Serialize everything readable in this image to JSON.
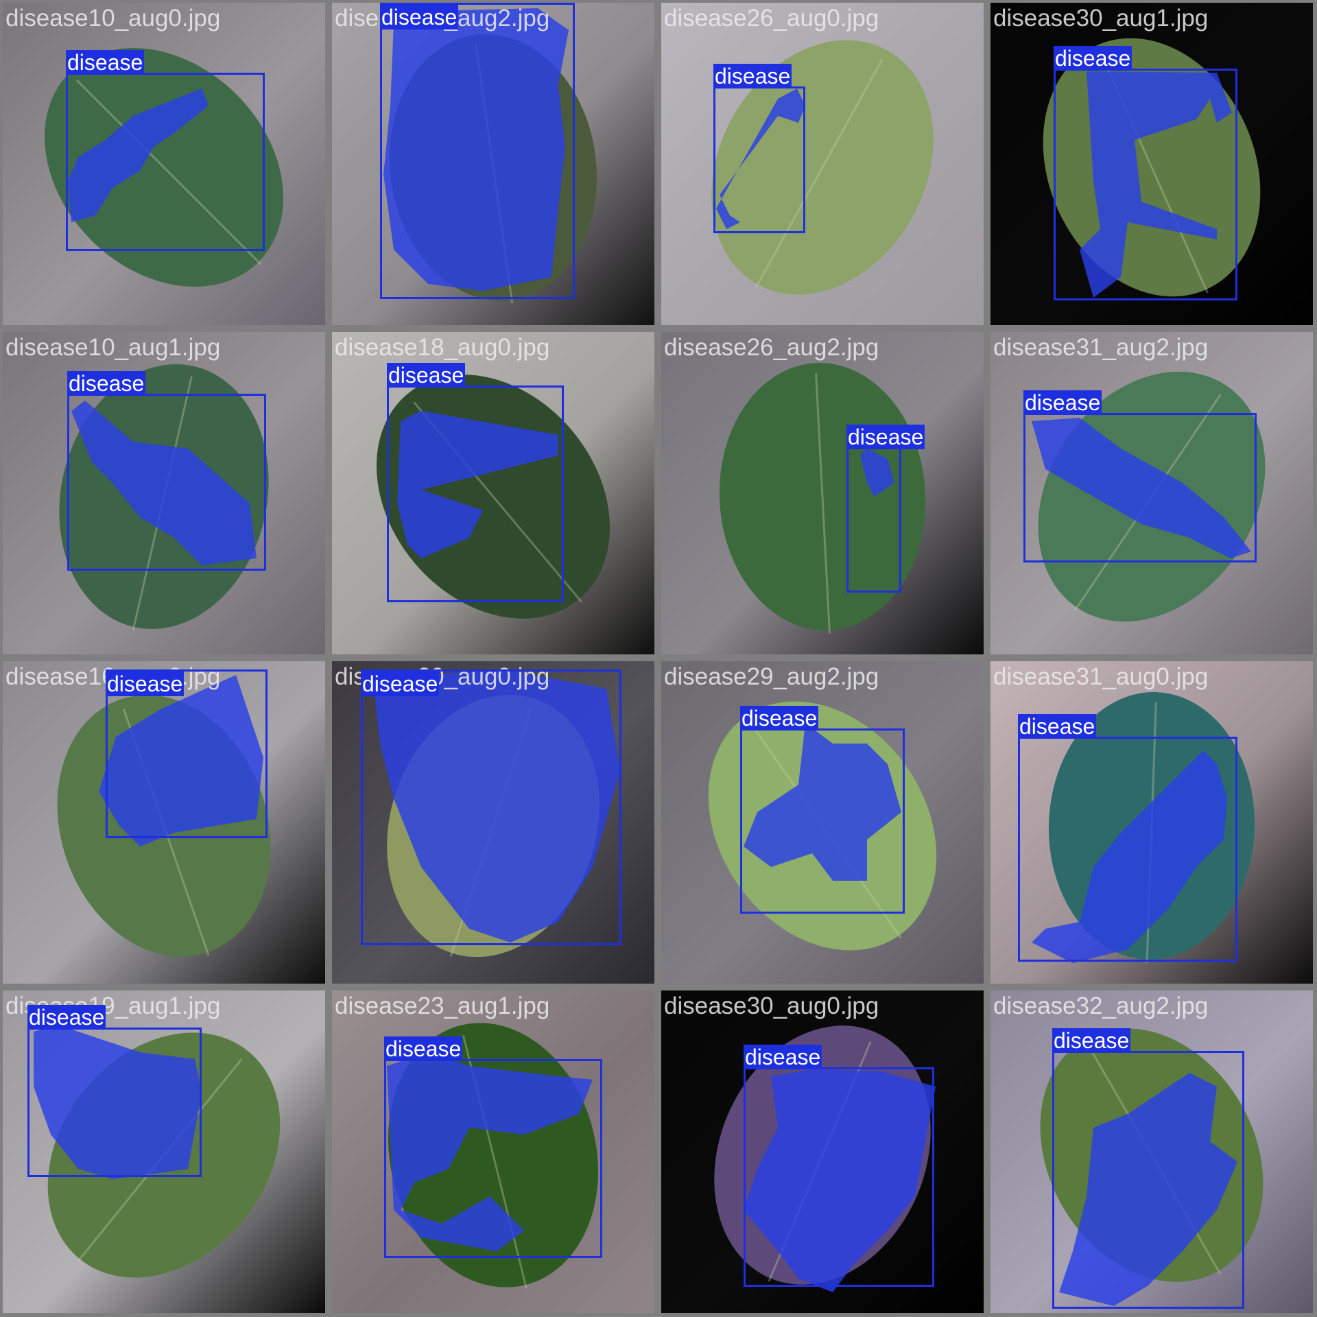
{
  "colors": {
    "border": "#7f7f7f",
    "detection": "#1e2fe0",
    "mask": "#2a3fe6",
    "label_text": "#ffffff"
  },
  "tiles": [
    {
      "filename": "disease10_aug0.jpg",
      "bg": [
        "#7a7579",
        "#9a969a",
        "#6a6670"
      ],
      "leaf": "#3f6a48",
      "det": {
        "label": "disease"
      }
    },
    {
      "filename": "disease17_aug2.jpg",
      "bg": [
        "#a6a3a8",
        "#8f8b8f",
        "#111111"
      ],
      "leaf": "#4a5a3a",
      "det": {
        "label": "disease"
      }
    },
    {
      "filename": "disease26_aug0.jpg",
      "bg": [
        "#b9b7bc",
        "#a9a6ab",
        "#9e9ba0"
      ],
      "leaf": "#8ea36a",
      "det": {
        "label": "disease"
      }
    },
    {
      "filename": "disease30_aug1.jpg",
      "bg": [
        "#050505",
        "#0a0a0a",
        "#000000"
      ],
      "leaf": "#5f7a45",
      "det": {
        "label": "disease"
      }
    },
    {
      "filename": "disease10_aug1.jpg",
      "bg": [
        "#7a7579",
        "#979397",
        "#6c6870"
      ],
      "leaf": "#3d6448",
      "det": {
        "label": "disease"
      }
    },
    {
      "filename": "disease18_aug0.jpg",
      "bg": [
        "#b8b7b4",
        "#a5a39f",
        "#0e0e0e"
      ],
      "leaf": "#2f4a2c",
      "det": {
        "label": "disease"
      }
    },
    {
      "filename": "disease26_aug2.jpg",
      "bg": [
        "#76747a",
        "#8a878d",
        "#0a0a0a"
      ],
      "leaf": "#3d6a3c",
      "det": {
        "label": "disease"
      }
    },
    {
      "filename": "disease31_aug2.jpg",
      "bg": [
        "#8a8489",
        "#a39ea2",
        "#6f6a70"
      ],
      "leaf": "#4a7a58",
      "det": {
        "label": "disease"
      }
    },
    {
      "filename": "disease16_aug0.jpg",
      "bg": [
        "#8c8a8f",
        "#a7a5a9",
        "#0c0c0c"
      ],
      "leaf": "#57794a",
      "det": {
        "label": "disease"
      }
    },
    {
      "filename": "disease20_aug0.jpg",
      "bg": [
        "#3c3a40",
        "#55535a",
        "#2a2930"
      ],
      "leaf": "#8e9a62",
      "det": {
        "label": "disease"
      }
    },
    {
      "filename": "disease29_aug2.jpg",
      "bg": [
        "#6c6a6f",
        "#807e84",
        "#5c5a60"
      ],
      "leaf": "#8fb06a",
      "det": {
        "label": "disease"
      }
    },
    {
      "filename": "disease31_aug0.jpg",
      "bg": [
        "#c4b4b8",
        "#9f9296",
        "#0c0c0c"
      ],
      "leaf": "#2f6a6a",
      "det": {
        "label": "disease"
      }
    },
    {
      "filename": "disease19_aug1.jpg",
      "bg": [
        "#9c9a9e",
        "#b3b1b4",
        "#0a0a0a"
      ],
      "leaf": "#5a7a44",
      "det": {
        "label": "disease"
      }
    },
    {
      "filename": "disease23_aug1.jpg",
      "bg": [
        "#9a9092",
        "#7f7579",
        "#8f8588"
      ],
      "leaf": "#2e5a22",
      "det": {
        "label": "disease"
      }
    },
    {
      "filename": "disease30_aug0.jpg",
      "bg": [
        "#060606",
        "#0b0b0b",
        "#000000"
      ],
      "leaf": "#5e4a7a",
      "det": {
        "label": "disease"
      }
    },
    {
      "filename": "disease32_aug2.jpg",
      "bg": [
        "#8d889a",
        "#a9a4b4",
        "#5c586a"
      ],
      "leaf": "#5a7a3e",
      "det": {
        "label": "disease"
      }
    }
  ]
}
